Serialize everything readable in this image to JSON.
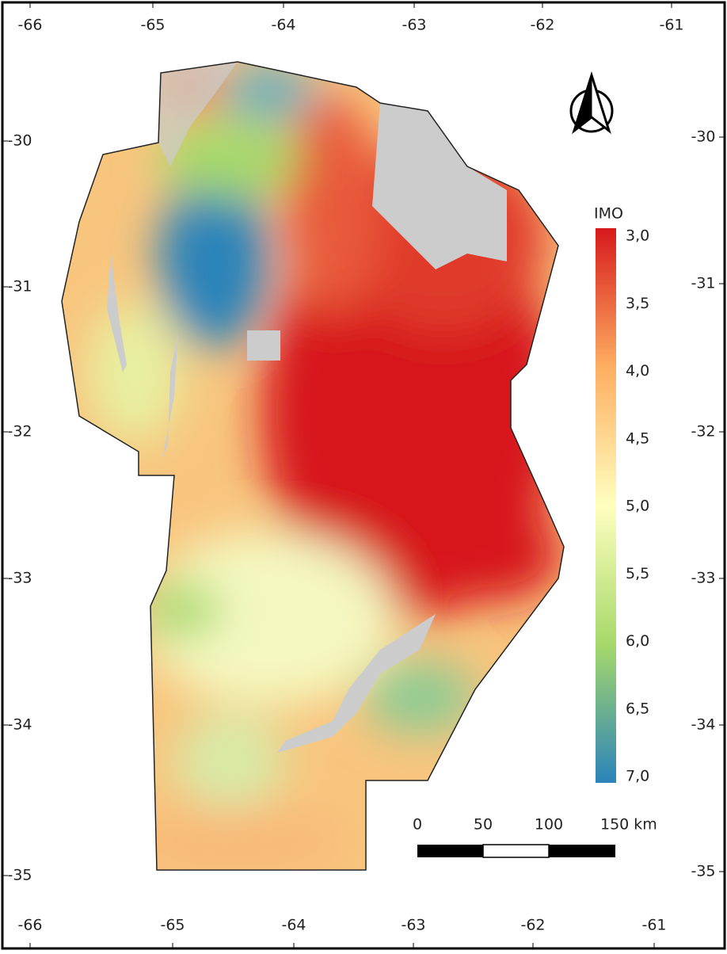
{
  "map": {
    "top_ticks": [
      "-66",
      "-65",
      "-64",
      "-63",
      "-62",
      "-61"
    ],
    "bottom_ticks": [
      "-66",
      "-65",
      "-64",
      "-63",
      "-62",
      "-61"
    ],
    "left_ticks": [
      "-30",
      "-31",
      "-32",
      "-33",
      "-34",
      "-35"
    ],
    "right_ticks": [
      "-30",
      "-31",
      "-32",
      "-33",
      "-34",
      "-35"
    ],
    "legend": {
      "title": "IMO",
      "labels": [
        "3,0",
        "3,5",
        "4,0",
        "4,5",
        "5,0",
        "5,5",
        "6,0",
        "6,5",
        "7,0"
      ]
    },
    "scale_bar": {
      "labels": [
        "0",
        "50",
        "100",
        "150 km"
      ]
    }
  }
}
